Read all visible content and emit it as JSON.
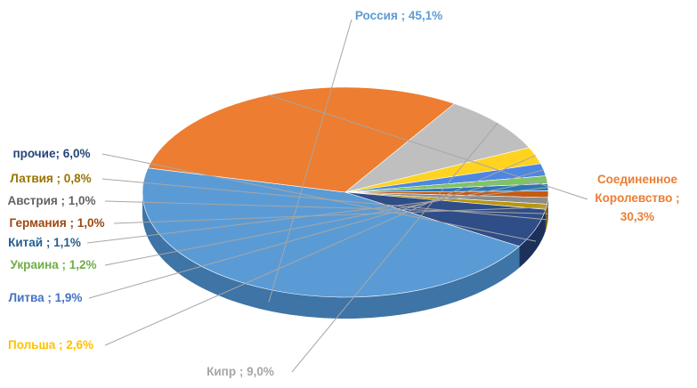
{
  "chart_data": {
    "type": "pie",
    "variant": "3d",
    "title": "",
    "slices": [
      {
        "name": "Россия",
        "value": 45.1,
        "label": "Россия ; 45,1%",
        "color": "#5b9bd5",
        "side": "#3e74a6",
        "label_color": "#5b9bd5"
      },
      {
        "name": "Соединенное Королевство",
        "value": 30.3,
        "label": "Соединенное Королевство ; 30,3%",
        "color": "#ed7d31",
        "side": "#b35a1f",
        "label_color": "#ed7d31"
      },
      {
        "name": "Кипр",
        "value": 9.0,
        "label": "Кипр ; 9,0%",
        "color": "#bfbfbf",
        "side": "#7f7f7f",
        "label_color": "#a6a6a6"
      },
      {
        "name": "Польша",
        "value": 2.6,
        "label": "Польша ; 2,6%",
        "color": "#ffd320",
        "side": "#bf9d00",
        "label_color": "#ffc000"
      },
      {
        "name": "Литва",
        "value": 1.9,
        "label": "Литва ; 1,9%",
        "color": "#4f86e0",
        "side": "#2f5fae",
        "label_color": "#4472c4"
      },
      {
        "name": "Украина",
        "value": 1.2,
        "label": "Украина ; 1,2%",
        "color": "#7cc561",
        "side": "#548c3f",
        "label_color": "#70ad47"
      },
      {
        "name": "Китай",
        "value": 1.1,
        "label": "Китай ; 1,1%",
        "color": "#2e75b6",
        "side": "#1d4e7a",
        "label_color": "#255e91"
      },
      {
        "name": "Германия",
        "value": 1.0,
        "label": "Германия ; 1,0%",
        "color": "#c55a11",
        "side": "#8a3e0b",
        "label_color": "#9e480e"
      },
      {
        "name": "Австрия",
        "value": 1.0,
        "label": "Австрия ; 1,0%",
        "color": "#8c8c8c",
        "side": "#5e5e5e",
        "label_color": "#636363"
      },
      {
        "name": "Латвия",
        "value": 0.8,
        "label": "Латвия ; 0,8%",
        "color": "#b8960c",
        "side": "#7d6607",
        "label_color": "#997300"
      },
      {
        "name": "прочие",
        "value": 6.0,
        "label": "прочие; 6,0%",
        "color": "#2f4d87",
        "side": "#1c305a",
        "label_color": "#264478"
      }
    ],
    "legend": "none",
    "label_position": "outside with leader lines"
  }
}
